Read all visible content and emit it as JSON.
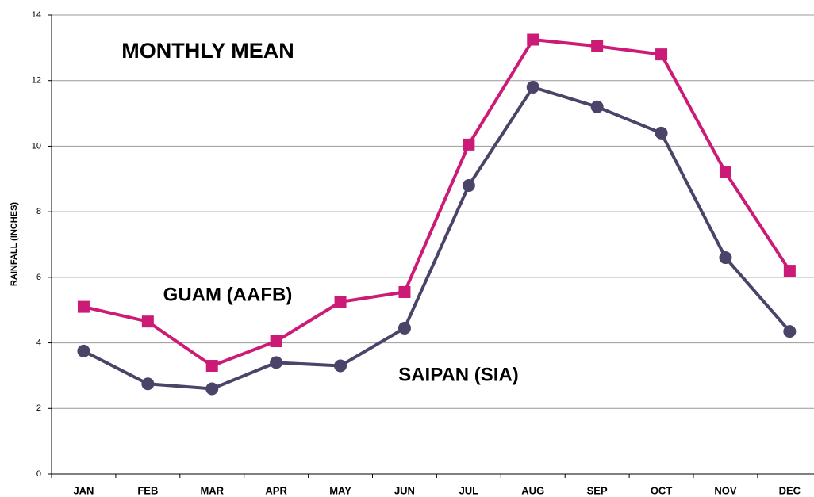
{
  "chart_data": {
    "type": "line",
    "title": "MONTHLY MEAN",
    "y_label": "RAINFALL (INCHES)",
    "categories": [
      "JAN",
      "FEB",
      "MAR",
      "APR",
      "MAY",
      "JUN",
      "JUL",
      "AUG",
      "SEP",
      "OCT",
      "NOV",
      "DEC"
    ],
    "series": [
      {
        "name": "GUAM (AAFB)",
        "color": "#cc1a77",
        "marker": "square",
        "values": [
          5.1,
          4.65,
          3.3,
          4.05,
          5.25,
          5.55,
          10.05,
          13.25,
          13.05,
          12.8,
          9.2,
          6.2
        ]
      },
      {
        "name": "SAIPAN (SIA)",
        "color": "#4b4468",
        "marker": "circle",
        "values": [
          3.75,
          2.75,
          2.6,
          3.4,
          3.3,
          4.45,
          8.8,
          11.8,
          11.2,
          10.4,
          6.6,
          4.35
        ]
      }
    ],
    "ylim": [
      0,
      14
    ],
    "yticks": [
      0,
      2,
      4,
      6,
      8,
      10,
      12,
      14
    ],
    "grid": true
  }
}
